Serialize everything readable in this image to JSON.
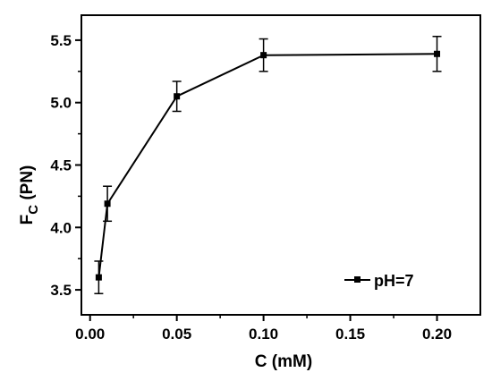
{
  "chart_data": {
    "type": "line",
    "title": "",
    "xlabel": "C (mM)",
    "ylabel_main": "F",
    "ylabel_sub": "C",
    "ylabel_unit": " (PN)",
    "xlim": [
      -0.005,
      0.225
    ],
    "ylim": [
      3.3,
      5.7
    ],
    "x_ticks": [
      0.0,
      0.05,
      0.1,
      0.15,
      0.2
    ],
    "x_tick_labels": [
      "0.00",
      "0.05",
      "0.10",
      "0.15",
      "0.20"
    ],
    "y_ticks": [
      3.5,
      4.0,
      4.5,
      5.0,
      5.5
    ],
    "y_tick_labels": [
      "3.5",
      "4.0",
      "4.5",
      "5.0",
      "5.5"
    ],
    "grid": false,
    "legend_position": "bottom-right",
    "series": [
      {
        "name": "pH=7",
        "marker": "square",
        "color": "#000000",
        "x": [
          0.005,
          0.01,
          0.05,
          0.1,
          0.2
        ],
        "y": [
          3.6,
          4.19,
          5.05,
          5.38,
          5.39
        ],
        "error": [
          0.13,
          0.14,
          0.12,
          0.13,
          0.14
        ]
      }
    ]
  }
}
